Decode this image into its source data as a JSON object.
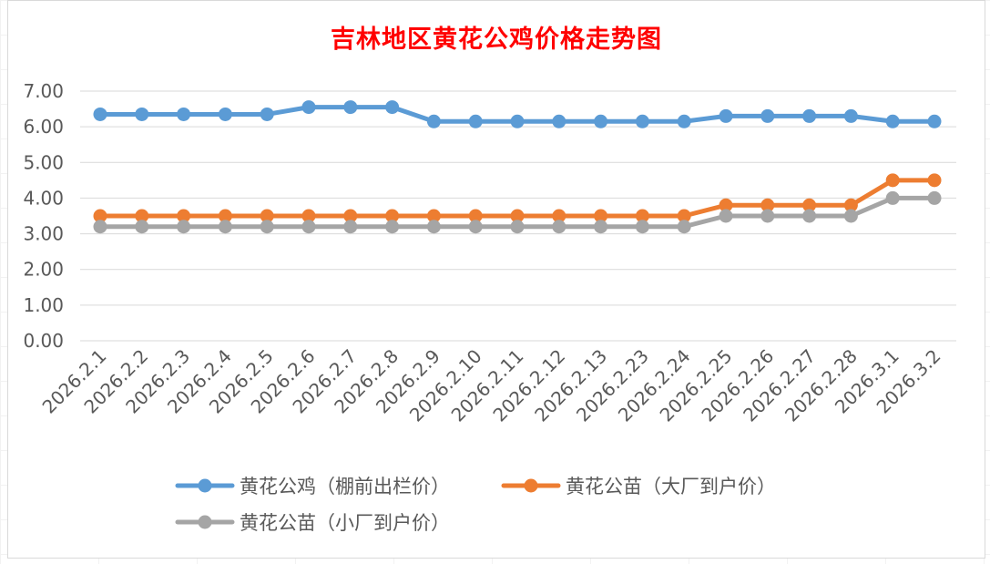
{
  "chart_data": {
    "type": "line",
    "title": "吉林地区黄花公鸡价格走势图",
    "categories": [
      "2026.2.1",
      "2026.2.2",
      "2026.2.3",
      "2026.2.4",
      "2026.2.5",
      "2026.2.6",
      "2026.2.7",
      "2026.2.8",
      "2026.2.9",
      "2026.2.10",
      "2026.2.11",
      "2026.2.12",
      "2026.2.13",
      "2026.2.23",
      "2026.2.24",
      "2026.2.25",
      "2026.2.26",
      "2026.2.27",
      "2026.2.28",
      "2026.3.1",
      "2026.3.2"
    ],
    "y_ticks": [
      "0.00",
      "1.00",
      "2.00",
      "3.00",
      "4.00",
      "5.00",
      "6.00",
      "7.00"
    ],
    "ylim": [
      0,
      7
    ],
    "grid": "horizontal",
    "legend_position": "bottom",
    "series": [
      {
        "name": "黄花公鸡（棚前出栏价）",
        "color": "#5B9BD5",
        "values": [
          6.35,
          6.35,
          6.35,
          6.35,
          6.35,
          6.55,
          6.55,
          6.55,
          6.15,
          6.15,
          6.15,
          6.15,
          6.15,
          6.15,
          6.15,
          6.3,
          6.3,
          6.3,
          6.3,
          6.15,
          6.15
        ]
      },
      {
        "name": "黄花公苗（大厂到户价）",
        "color": "#ED7D31",
        "values": [
          3.5,
          3.5,
          3.5,
          3.5,
          3.5,
          3.5,
          3.5,
          3.5,
          3.5,
          3.5,
          3.5,
          3.5,
          3.5,
          3.5,
          3.5,
          3.8,
          3.8,
          3.8,
          3.8,
          4.5,
          4.5
        ]
      },
      {
        "name": "黄花公苗（小厂到户价）",
        "color": "#A5A5A5",
        "values": [
          3.2,
          3.2,
          3.2,
          3.2,
          3.2,
          3.2,
          3.2,
          3.2,
          3.2,
          3.2,
          3.2,
          3.2,
          3.2,
          3.2,
          3.2,
          3.5,
          3.5,
          3.5,
          3.5,
          4.0,
          4.0
        ]
      }
    ]
  }
}
